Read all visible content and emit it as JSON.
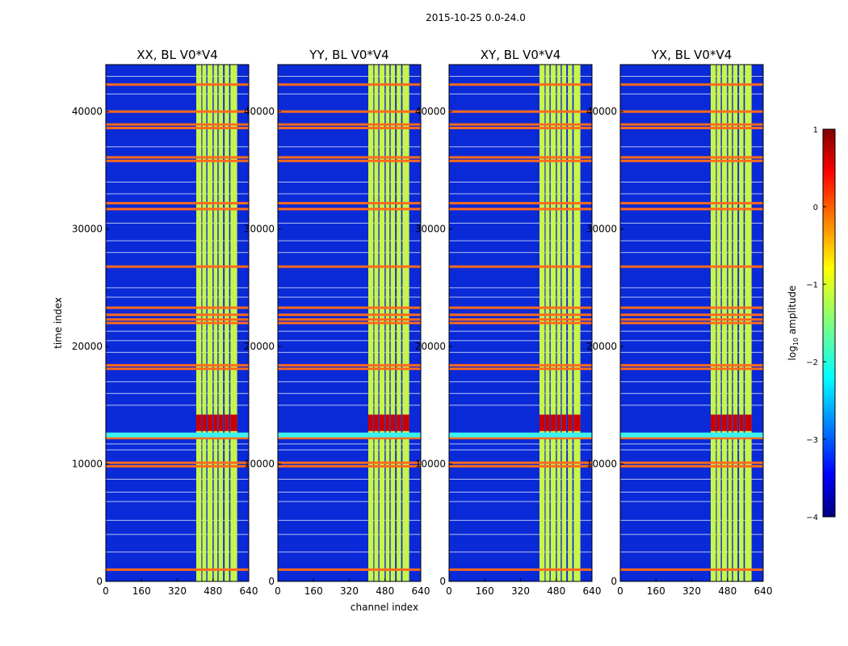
{
  "chart_data": {
    "type": "heatmap",
    "suptitle": "2015-10-25 0.0-24.0",
    "x_axis": {
      "label": "channel index",
      "range": [
        0,
        640
      ],
      "ticks": [
        0,
        160,
        320,
        480,
        640
      ],
      "tick_labels": [
        "0",
        "160",
        "320",
        "480",
        "640"
      ]
    },
    "y_axis": {
      "label": "time index",
      "range": [
        0,
        44000
      ],
      "ticks": [
        0,
        10000,
        20000,
        30000,
        40000
      ],
      "tick_labels": [
        "0",
        "10000",
        "20000",
        "30000",
        "40000"
      ]
    },
    "panels": [
      {
        "title": "XX, BL V0*V4",
        "pol": "XX"
      },
      {
        "title": "YY, BL V0*V4",
        "pol": "YY"
      },
      {
        "title": "XY, BL V0*V4",
        "pol": "XY"
      },
      {
        "title": "YX, BL V0*V4",
        "pol": "YX"
      }
    ],
    "colorbar": {
      "label_prefix": "log",
      "label_subscript": "10",
      "label_suffix": " amplitude",
      "range": [
        -4,
        1
      ],
      "ticks": [
        1,
        0,
        -1,
        -2,
        -3,
        -4
      ],
      "tick_labels": [
        "1",
        "0",
        "−1",
        "−2",
        "−3",
        "−4"
      ],
      "colormap": "jet"
    },
    "band_channels": [
      [
        405,
        428
      ],
      [
        432,
        450
      ],
      [
        455,
        478
      ],
      [
        483,
        500
      ],
      [
        505,
        525
      ],
      [
        532,
        552
      ],
      [
        558,
        588
      ]
    ],
    "bright_time_range": [
      12800,
      14200
    ],
    "rfi_lines_time": [
      1000,
      9800,
      10100,
      12200,
      12500,
      18100,
      18400,
      22000,
      22300,
      22700,
      23300,
      26800,
      31700,
      32200,
      35800,
      36100,
      38600,
      38900,
      40000,
      42300
    ],
    "gap_lines_time": [
      2500,
      4000,
      5200,
      6800,
      7600,
      8700,
      11200,
      11700,
      15000,
      16000,
      17000,
      19500,
      20500,
      21300,
      24200,
      25000,
      28000,
      29000,
      30500,
      33000,
      34000,
      37000,
      41500,
      43000
    ],
    "colors": {
      "background": "#0a2ad8",
      "rfi": "#ff6a1a",
      "band": "#c8f54a",
      "bright": "#cc0000",
      "cyan": "#3cf0f0"
    }
  }
}
